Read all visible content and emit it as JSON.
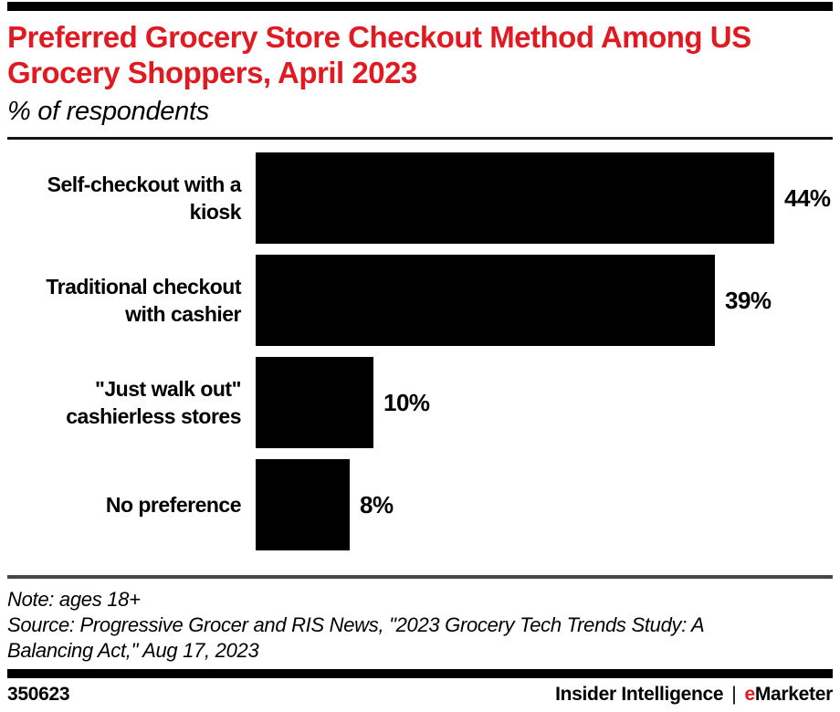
{
  "header": {
    "title_lines": [
      "Preferred Grocery Store Checkout Method Among US",
      "Grocery Shoppers, April 2023"
    ],
    "subtitle": "% of respondents"
  },
  "chart_data": {
    "type": "bar",
    "orientation": "horizontal",
    "title": "Preferred Grocery Store Checkout Method Among US Grocery Shoppers, April 2023",
    "subtitle": "% of respondents",
    "categories": [
      "Self-checkout with a kiosk",
      "Traditional checkout with cashier",
      "\"Just walk out\" cashierless stores",
      "No preference"
    ],
    "label_lines": [
      [
        "Self-checkout with a",
        "kiosk"
      ],
      [
        "Traditional checkout",
        "with cashier"
      ],
      [
        "\"Just walk out\"",
        "cashierless stores"
      ],
      [
        "No preference"
      ]
    ],
    "values": [
      44,
      39,
      10,
      8
    ],
    "value_labels": [
      "44%",
      "39%",
      "10%",
      "8%"
    ],
    "xlabel": "",
    "ylabel": "",
    "xlim": [
      0,
      50
    ],
    "grid": false,
    "legend": "none",
    "bar_color": "#000000"
  },
  "notes": {
    "note": "Note: ages 18+",
    "source": "Source: Progressive Grocer and RIS News, \"2023 Grocery Tech Trends Study: A Balancing Act,\" Aug 17, 2023"
  },
  "footer": {
    "chart_id": "350623",
    "brand_insider": "Insider Intelligence",
    "separator": "|",
    "emarketer_e": "e",
    "emarketer_rest": "Marketer"
  },
  "colors": {
    "accent_red": "#e01a20",
    "bar": "#000000",
    "rule_dark": "#141414",
    "rule_gray": "#474747",
    "background": "#ffffff"
  }
}
